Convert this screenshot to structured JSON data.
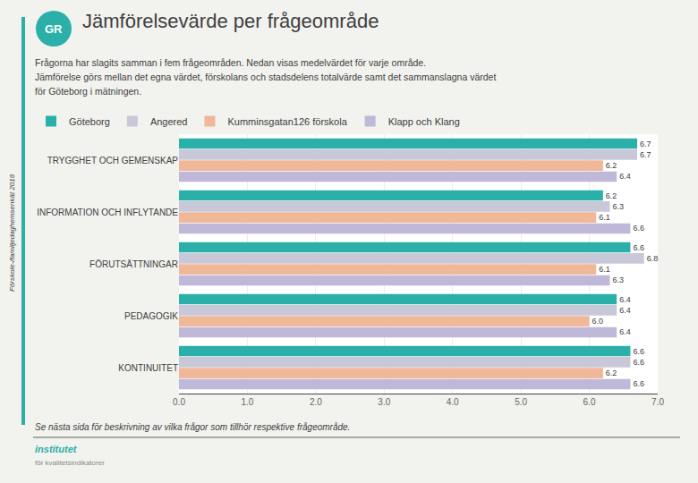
{
  "chart_data": {
    "type": "bar",
    "orientation": "horizontal",
    "title": "Jämförelsevärde per frågeområde",
    "subtitle": [
      "Frågorna har slagits samman i fem frågeområden. Nedan visas medelvärdet för varje område.",
      "Jämförelse görs mellan det egna värdet, förskolans och stadsdelens totalvärde samt det sammanslagna värdet",
      "för Göteborg i mätningen."
    ],
    "annotations": [
      "Förskole-/familjedaghemsenkät 2016",
      "GR",
      "Se nästa sida för beskrivning av vilka frågor som tillhör respektive frågeområde.",
      "institutet",
      "för kvalitetsindikatorer"
    ],
    "categories": [
      "TRYGGHET OCH GEMENSKAP",
      "INFORMATION OCH INFLYTANDE",
      "FÖRUTSÄTTNINGAR",
      "PEDAGOGIK",
      "KONTINUITET"
    ],
    "series": [
      {
        "name": "Göteborg",
        "color": "#2ab0a8",
        "values": [
          6.7,
          6.2,
          6.6,
          6.4,
          6.6
        ],
        "value_labels": [
          "6.7",
          "6.2",
          "6.6",
          "6.4",
          "6.6"
        ]
      },
      {
        "name": "Angered",
        "color": "#c8c8d8",
        "values": [
          6.7,
          6.3,
          6.8,
          6.4,
          6.6
        ],
        "value_labels": [
          "6.7",
          "6.3",
          "6.8",
          "6.4",
          "6.6"
        ]
      },
      {
        "name": "Kumminsgatan126 förskola",
        "color": "#f0b898",
        "values": [
          6.2,
          6.1,
          6.1,
          6.0,
          6.2
        ],
        "value_labels": [
          "6.2",
          "6.1",
          "6.1",
          "6.0",
          "6.2"
        ]
      },
      {
        "name": "Klapp och Klang",
        "color": "#c0b8d8",
        "values": [
          6.4,
          6.6,
          6.3,
          6.4,
          6.6
        ],
        "value_labels": [
          "6.4",
          "6.6",
          "6.3",
          "6.4",
          "6.6"
        ]
      }
    ],
    "xlim": [
      0.0,
      7.0
    ],
    "xticks": [
      {
        "value": 0,
        "label": "0.0"
      },
      {
        "value": 1,
        "label": "1.0"
      },
      {
        "value": 2,
        "label": "2.0"
      },
      {
        "value": 3,
        "label": "3.0"
      },
      {
        "value": 4,
        "label": "4.0"
      },
      {
        "value": 5,
        "label": "5.0"
      },
      {
        "value": 6,
        "label": "6.0"
      },
      {
        "value": 7,
        "label": "7.0"
      }
    ],
    "grid": true,
    "legend": "upper left",
    "data_labels": true
  }
}
